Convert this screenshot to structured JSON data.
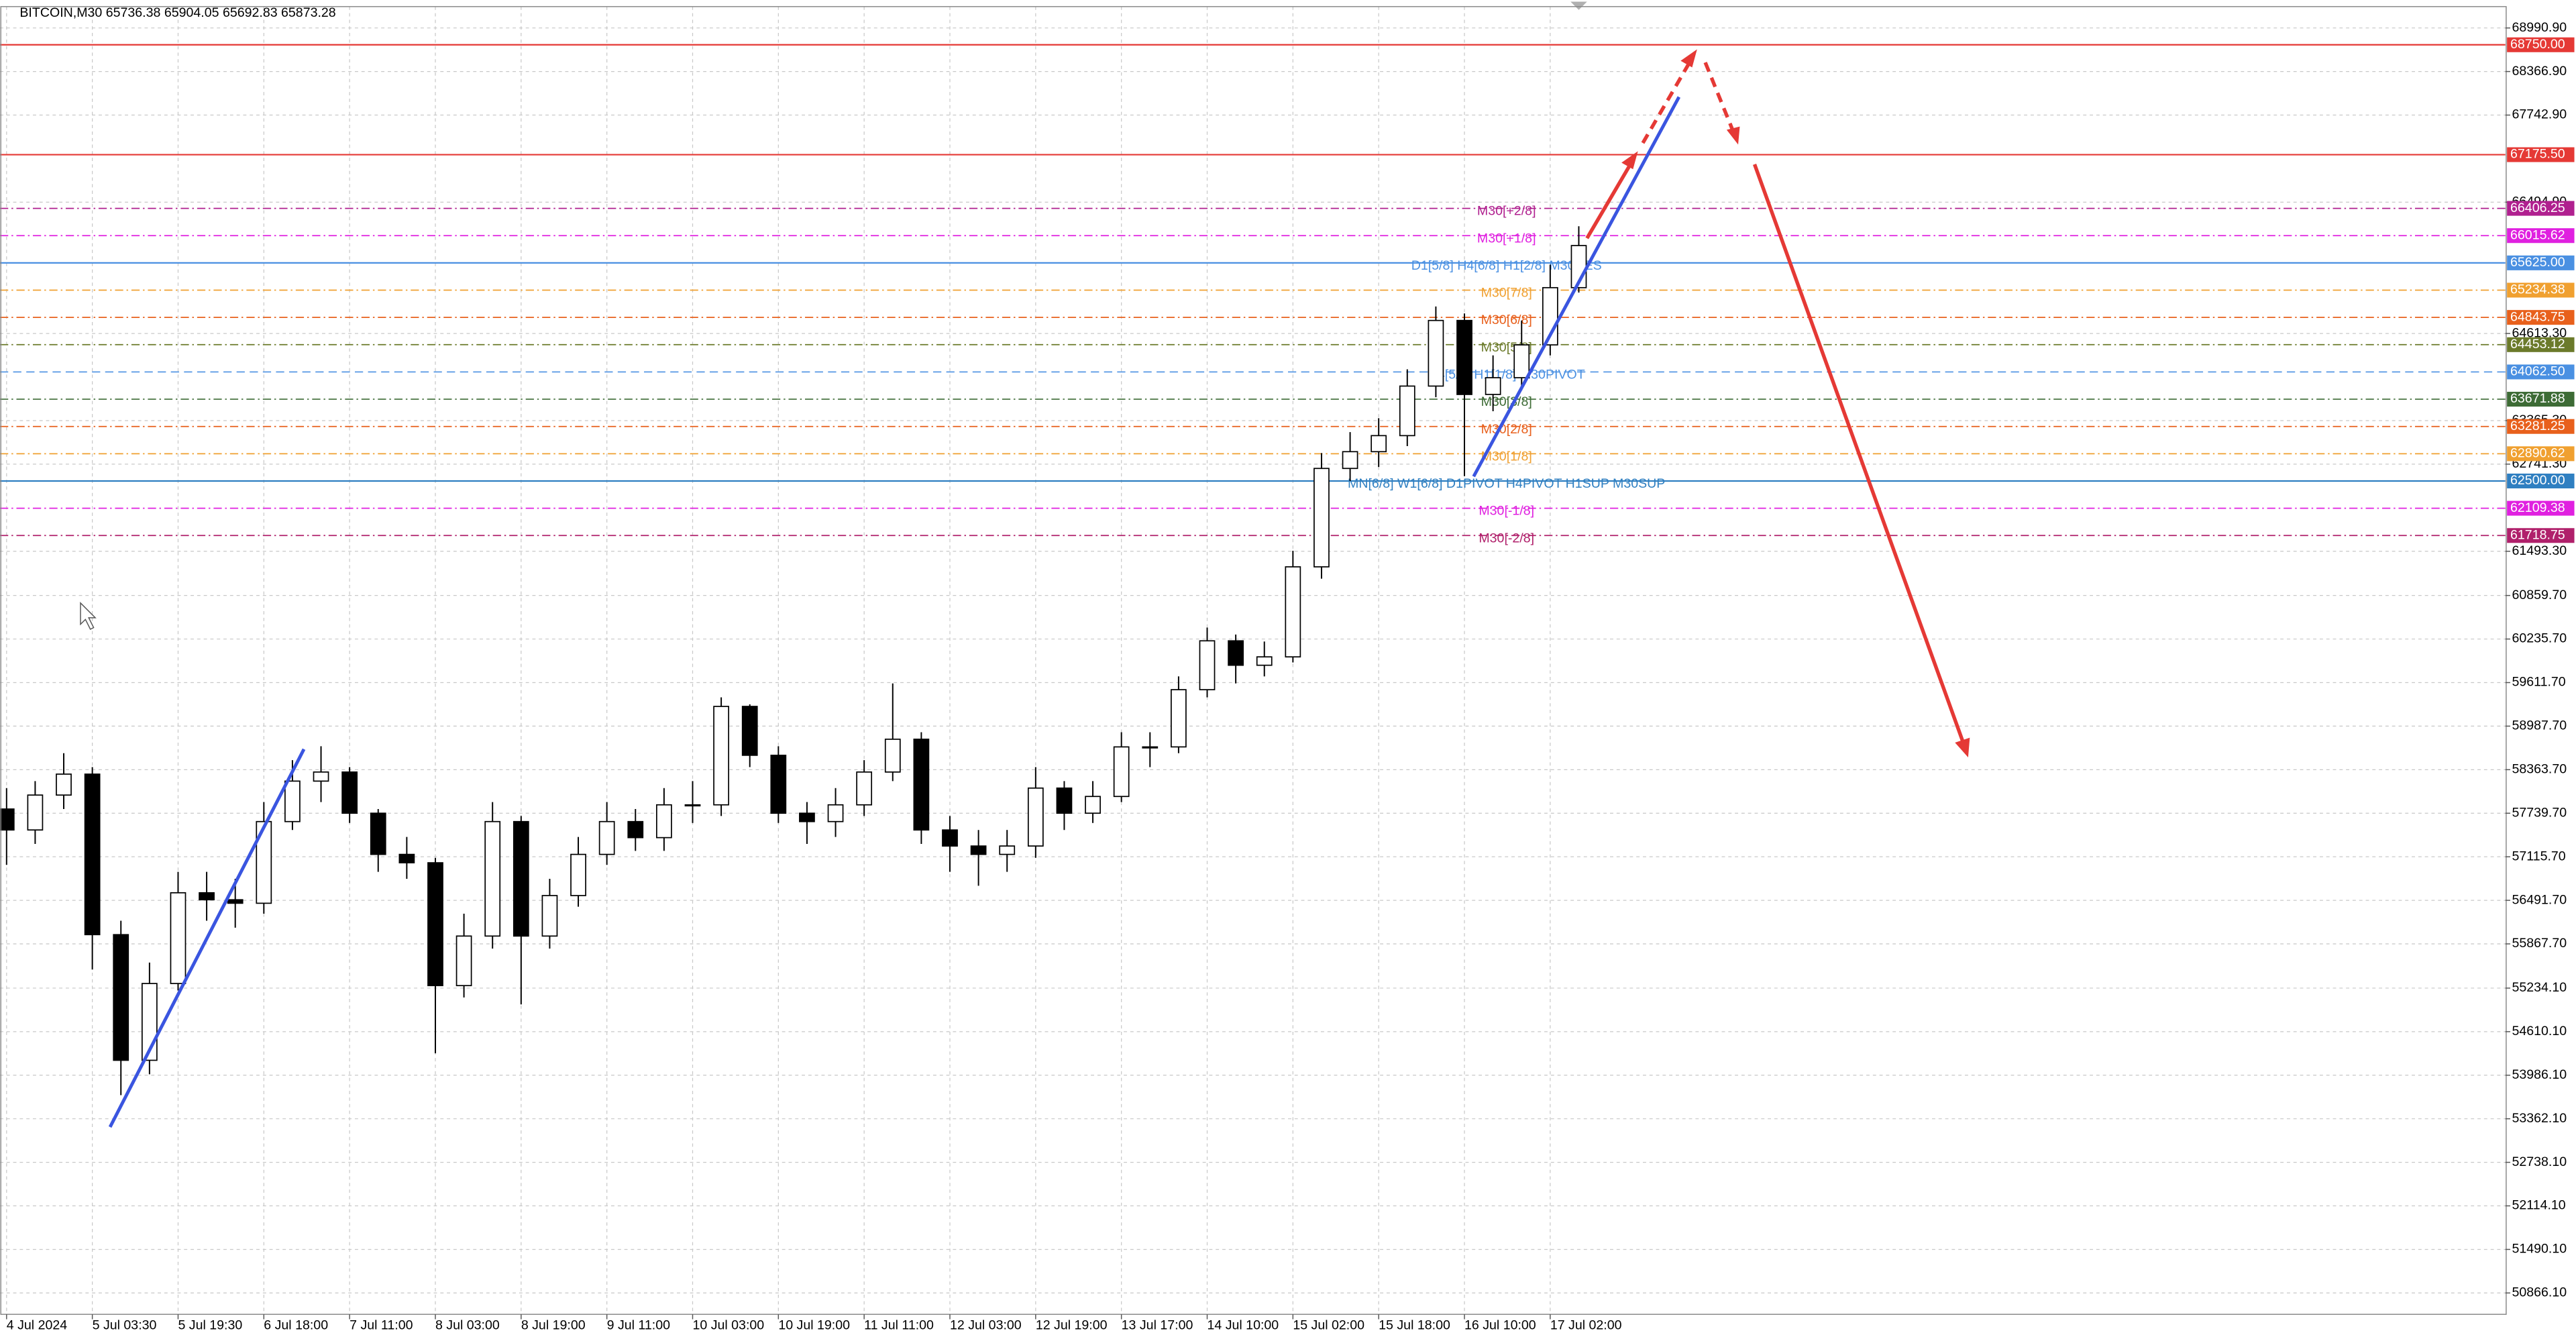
{
  "chart_data": {
    "type": "candlestick",
    "title": "BITCOIN,M30  65736.38 65904.05 65692.83 65873.28",
    "grid": true,
    "up_color": "#ffffff",
    "down_color": "#000000",
    "ylim": [
      50560,
      69297
    ],
    "yticks": [
      {
        "value": 68990.9,
        "label": "68990.90"
      },
      {
        "value": 68366.9,
        "label": "68366.90"
      },
      {
        "value": 67742.9,
        "label": "67742.90"
      },
      {
        "value": 66494.9,
        "label": "66494.90"
      },
      {
        "value": 64613.3,
        "label": "64613.30"
      },
      {
        "value": 63365.3,
        "label": "63365.30"
      },
      {
        "value": 62741.3,
        "label": "62741.30"
      },
      {
        "value": 61493.3,
        "label": "61493.30"
      },
      {
        "value": 60859.7,
        "label": "60859.70"
      },
      {
        "value": 60235.7,
        "label": "60235.70"
      },
      {
        "value": 59611.7,
        "label": "59611.70"
      },
      {
        "value": 58987.7,
        "label": "58987.70"
      },
      {
        "value": 58363.7,
        "label": "58363.70"
      },
      {
        "value": 57739.7,
        "label": "57739.70"
      },
      {
        "value": 57115.7,
        "label": "57115.70"
      },
      {
        "value": 56491.7,
        "label": "56491.70"
      },
      {
        "value": 55867.7,
        "label": "55867.70"
      },
      {
        "value": 55234.1,
        "label": "55234.10"
      },
      {
        "value": 54610.1,
        "label": "54610.10"
      },
      {
        "value": 53986.1,
        "label": "53986.10"
      },
      {
        "value": 53362.1,
        "label": "53362.10"
      },
      {
        "value": 52738.1,
        "label": "52738.10"
      },
      {
        "value": 52114.1,
        "label": "52114.10"
      },
      {
        "value": 51490.1,
        "label": "51490.10"
      },
      {
        "value": 50866.1,
        "label": "50866.10"
      }
    ],
    "categories": [
      "4 Jul 2024",
      null,
      null,
      "5 Jul 03:30",
      null,
      null,
      "5 Jul 19:30",
      null,
      null,
      "6 Jul 18:00",
      null,
      null,
      "7 Jul 11:00",
      null,
      null,
      "8 Jul 03:00",
      null,
      null,
      "8 Jul 19:00",
      null,
      null,
      "9 Jul 11:00",
      null,
      null,
      "10 Jul 03:00",
      null,
      null,
      "10 Jul 19:00",
      null,
      null,
      "11 Jul 11:00",
      null,
      null,
      "12 Jul 03:00",
      null,
      null,
      "12 Jul 19:00",
      null,
      null,
      "13 Jul 17:00",
      null,
      null,
      "14 Jul 10:00",
      null,
      null,
      "15 Jul 02:00",
      null,
      null,
      "15 Jul 18:00",
      null,
      null,
      "16 Jul 10:00",
      null,
      null,
      "17 Jul 02:00",
      null
    ],
    "open": [
      57800,
      57500,
      58000,
      58300,
      56000,
      54200,
      55300,
      56600,
      56500,
      56450,
      57620,
      58200,
      58330,
      57740,
      57150,
      57030,
      55270,
      55980,
      57620,
      55980,
      56560,
      57150,
      57620,
      57390,
      57860,
      57860,
      59270,
      58570,
      57740,
      57620,
      57860,
      58330,
      58800,
      57500,
      57270,
      57150,
      57270,
      58100,
      57740,
      57980,
      58690,
      58690,
      59510,
      60210,
      59860,
      59980,
      61270,
      62680,
      62920,
      63150,
      63860,
      64800,
      63740,
      63980,
      64450,
      65270
    ],
    "high": [
      58100,
      58200,
      58600,
      58400,
      56200,
      55600,
      56900,
      56900,
      56800,
      57900,
      58500,
      58700,
      58400,
      57800,
      57400,
      57100,
      56300,
      57900,
      57700,
      56800,
      57400,
      57900,
      57800,
      58100,
      58200,
      59400,
      59300,
      58700,
      57900,
      58100,
      58500,
      59600,
      58900,
      57700,
      57500,
      57500,
      58400,
      58200,
      58200,
      58900,
      58900,
      59700,
      60400,
      60300,
      60200,
      61500,
      62900,
      63200,
      63400,
      64100,
      65000,
      64900,
      64300,
      64800,
      65600,
      66150
    ],
    "low": [
      57000,
      57300,
      57800,
      55500,
      53700,
      54000,
      55200,
      56200,
      56100,
      56300,
      57500,
      57900,
      57600,
      56900,
      56800,
      54300,
      55100,
      55800,
      55000,
      55800,
      56400,
      57000,
      57200,
      57200,
      57600,
      57700,
      58400,
      57600,
      57300,
      57400,
      57700,
      58200,
      57300,
      56900,
      56700,
      56900,
      57100,
      57500,
      57600,
      57900,
      58400,
      58600,
      59400,
      59600,
      59700,
      59900,
      61100,
      62500,
      62700,
      63000,
      63700,
      62570,
      63500,
      63800,
      64300,
      65200
    ],
    "close": [
      57500,
      58000,
      58300,
      56000,
      54200,
      55300,
      56600,
      56500,
      56450,
      57620,
      58200,
      58330,
      57740,
      57150,
      57030,
      55270,
      55980,
      57620,
      55980,
      56560,
      57150,
      57620,
      57390,
      57860,
      57860,
      59270,
      58570,
      57740,
      57620,
      57860,
      58330,
      58800,
      57500,
      57270,
      57150,
      57270,
      58100,
      57740,
      57980,
      58690,
      58690,
      59510,
      60210,
      59860,
      59980,
      61270,
      62680,
      62920,
      63150,
      63860,
      64800,
      63740,
      63980,
      64450,
      65270,
      65873.28
    ],
    "levels": [
      {
        "value": 68750,
        "label": "68750.00",
        "color": "#e53935",
        "style": "solid"
      },
      {
        "value": 67175.5,
        "label": "67175.50",
        "color": "#e53935",
        "style": "solid"
      },
      {
        "value": 66406.25,
        "label": "66406.25",
        "color": "#b0208f",
        "style": "dashdot",
        "text": "M30[+2/8]"
      },
      {
        "value": 66015.62,
        "label": "66015.62",
        "color": "#e020e0",
        "style": "dashdot",
        "text": "M30[+1/8]"
      },
      {
        "value": 65625,
        "label": "65625.00",
        "color": "#4a90e2",
        "style": "solid",
        "text": "D1[5/8] H4[6/8] H1[2/8] M30RES"
      },
      {
        "value": 65234.38,
        "label": "65234.38",
        "color": "#f0a030",
        "style": "dashdot",
        "text": "M30[7/8]"
      },
      {
        "value": 64843.75,
        "label": "64843.75",
        "color": "#e8601c",
        "style": "dashdot",
        "text": "M30[6/8]"
      },
      {
        "value": 64453.12,
        "label": "64453.12",
        "color": "#6b7a2a",
        "style": "dashdot",
        "text": "M30[5/8]"
      },
      {
        "value": 64062.5,
        "label": "64062.50",
        "color": "#4a90e2",
        "style": "dashed",
        "text": "H4[5/8] H1[1/8] M30PIVOT"
      },
      {
        "value": 63671.88,
        "label": "63671.88",
        "color": "#3d6b35",
        "style": "dashdot",
        "text": "M30[3/8]"
      },
      {
        "value": 63281.25,
        "label": "63281.25",
        "color": "#e8601c",
        "style": "dashdot",
        "text": "M30[2/8]"
      },
      {
        "value": 62890.62,
        "label": "62890.62",
        "color": "#f0a030",
        "style": "dashdot",
        "text": "M30[1/8]"
      },
      {
        "value": 62500,
        "label": "62500.00",
        "color": "#2f7fc1",
        "style": "solid",
        "text": "MN[6/8] W1[6/8] D1PIVOT H4PIVOT H1SUP M30SUP"
      },
      {
        "value": 62109.38,
        "label": "62109.38",
        "color": "#e020e0",
        "style": "dashdot",
        "text": "M30[-1/8]"
      },
      {
        "value": 61718.75,
        "label": "61718.75",
        "color": "#b0206b",
        "style": "dashdot",
        "text": "M30[-2/8]"
      }
    ]
  }
}
